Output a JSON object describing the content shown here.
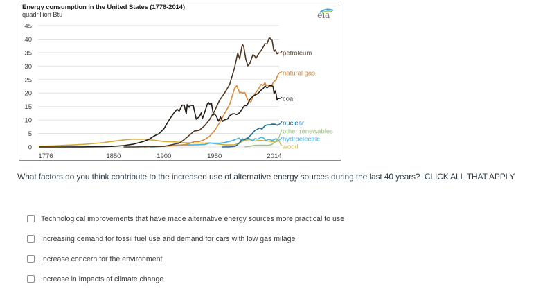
{
  "chart_data": {
    "type": "line",
    "title": "Energy consumption in the United States (1776-2014)",
    "subtitle": "quadrillion Btu",
    "xlabel": "",
    "ylabel": "quadrillion Btu",
    "xlim": [
      1776,
      2014
    ],
    "ylim": [
      0,
      45
    ],
    "xticks": [
      1776,
      1850,
      1900,
      1950,
      2014
    ],
    "yticks": [
      0,
      5,
      10,
      15,
      20,
      25,
      30,
      35,
      40,
      45
    ],
    "grid": true,
    "legend": "inline-right",
    "logo": "eia",
    "series": [
      {
        "name": "petroleum",
        "color": "#4e3620",
        "label_color": "#5c4a3a",
        "points": [
          [
            1860,
            0.0
          ],
          [
            1870,
            0.01
          ],
          [
            1880,
            0.1
          ],
          [
            1890,
            0.16
          ],
          [
            1900,
            0.23
          ],
          [
            1905,
            0.6
          ],
          [
            1910,
            1.0
          ],
          [
            1915,
            1.4
          ],
          [
            1920,
            2.7
          ],
          [
            1925,
            4.3
          ],
          [
            1930,
            5.9
          ],
          [
            1935,
            6.2
          ],
          [
            1940,
            7.8
          ],
          [
            1945,
            10.1
          ],
          [
            1950,
            13.3
          ],
          [
            1955,
            17.3
          ],
          [
            1960,
            20.0
          ],
          [
            1965,
            23.2
          ],
          [
            1970,
            29.5
          ],
          [
            1973,
            34.8
          ],
          [
            1975,
            32.7
          ],
          [
            1977,
            37.1
          ],
          [
            1978,
            37.9
          ],
          [
            1979,
            37.1
          ],
          [
            1981,
            32.6
          ],
          [
            1983,
            30.1
          ],
          [
            1985,
            30.9
          ],
          [
            1988,
            34.2
          ],
          [
            1990,
            33.6
          ],
          [
            1991,
            32.8
          ],
          [
            1994,
            34.7
          ],
          [
            1996,
            35.7
          ],
          [
            1998,
            36.9
          ],
          [
            2000,
            38.3
          ],
          [
            2002,
            38.2
          ],
          [
            2004,
            40.3
          ],
          [
            2005,
            40.4
          ],
          [
            2006,
            39.9
          ],
          [
            2007,
            39.8
          ],
          [
            2008,
            37.3
          ],
          [
            2009,
            35.4
          ],
          [
            2010,
            36.0
          ],
          [
            2011,
            35.3
          ],
          [
            2012,
            34.5
          ],
          [
            2013,
            35.0
          ],
          [
            2014,
            34.8
          ]
        ]
      },
      {
        "name": "natural gas",
        "color": "#d68a3c",
        "label_color": "#d68a3c",
        "points": [
          [
            1880,
            0.0
          ],
          [
            1890,
            0.25
          ],
          [
            1900,
            0.25
          ],
          [
            1905,
            0.37
          ],
          [
            1910,
            0.54
          ],
          [
            1915,
            0.67
          ],
          [
            1920,
            0.82
          ],
          [
            1925,
            1.2
          ],
          [
            1930,
            1.97
          ],
          [
            1935,
            1.97
          ],
          [
            1940,
            2.7
          ],
          [
            1945,
            3.9
          ],
          [
            1950,
            6.0
          ],
          [
            1955,
            9.0
          ],
          [
            1960,
            12.4
          ],
          [
            1965,
            15.8
          ],
          [
            1970,
            21.8
          ],
          [
            1972,
            22.7
          ],
          [
            1975,
            20.0
          ],
          [
            1976,
            20.3
          ],
          [
            1978,
            20.0
          ],
          [
            1980,
            20.2
          ],
          [
            1983,
            17.4
          ],
          [
            1986,
            16.6
          ],
          [
            1988,
            18.5
          ],
          [
            1990,
            19.6
          ],
          [
            1993,
            21.2
          ],
          [
            1996,
            23.1
          ],
          [
            1997,
            23.2
          ],
          [
            1998,
            22.8
          ],
          [
            2000,
            23.8
          ],
          [
            2001,
            22.8
          ],
          [
            2003,
            22.9
          ],
          [
            2005,
            22.6
          ],
          [
            2006,
            22.2
          ],
          [
            2008,
            23.8
          ],
          [
            2010,
            24.6
          ],
          [
            2011,
            24.9
          ],
          [
            2012,
            26.1
          ],
          [
            2013,
            26.8
          ],
          [
            2014,
            27.5
          ]
        ]
      },
      {
        "name": "coal",
        "color": "#221c14",
        "label_color": "#333333",
        "points": [
          [
            1776,
            0.0
          ],
          [
            1800,
            0.01
          ],
          [
            1820,
            0.02
          ],
          [
            1840,
            0.1
          ],
          [
            1850,
            0.22
          ],
          [
            1860,
            0.52
          ],
          [
            1870,
            1.05
          ],
          [
            1880,
            2.05
          ],
          [
            1885,
            2.8
          ],
          [
            1890,
            4.0
          ],
          [
            1895,
            4.9
          ],
          [
            1900,
            6.8
          ],
          [
            1905,
            10.0
          ],
          [
            1910,
            12.7
          ],
          [
            1913,
            14.0
          ],
          [
            1915,
            13.3
          ],
          [
            1918,
            15.5
          ],
          [
            1920,
            15.5
          ],
          [
            1922,
            12.3
          ],
          [
            1923,
            15.7
          ],
          [
            1925,
            14.7
          ],
          [
            1926,
            15.5
          ],
          [
            1929,
            15.3
          ],
          [
            1930,
            13.6
          ],
          [
            1932,
            10.3
          ],
          [
            1935,
            11.2
          ],
          [
            1937,
            12.7
          ],
          [
            1938,
            10.5
          ],
          [
            1940,
            12.5
          ],
          [
            1943,
            16.0
          ],
          [
            1944,
            16.5
          ],
          [
            1945,
            15.9
          ],
          [
            1947,
            16.1
          ],
          [
            1949,
            11.9
          ],
          [
            1950,
            12.3
          ],
          [
            1952,
            11.3
          ],
          [
            1954,
            9.6
          ],
          [
            1956,
            11.1
          ],
          [
            1958,
            9.5
          ],
          [
            1960,
            10.1
          ],
          [
            1963,
            10.4
          ],
          [
            1965,
            11.6
          ],
          [
            1968,
            12.3
          ],
          [
            1970,
            12.3
          ],
          [
            1972,
            12.0
          ],
          [
            1975,
            12.7
          ],
          [
            1977,
            13.9
          ],
          [
            1979,
            15.0
          ],
          [
            1980,
            15.4
          ],
          [
            1982,
            15.3
          ],
          [
            1985,
            17.5
          ],
          [
            1988,
            18.8
          ],
          [
            1990,
            19.2
          ],
          [
            1993,
            19.8
          ],
          [
            1996,
            21.0
          ],
          [
            1998,
            21.6
          ],
          [
            2000,
            22.6
          ],
          [
            2002,
            21.9
          ],
          [
            2004,
            22.5
          ],
          [
            2005,
            22.8
          ],
          [
            2007,
            22.7
          ],
          [
            2008,
            22.4
          ],
          [
            2009,
            19.7
          ],
          [
            2010,
            20.8
          ],
          [
            2011,
            19.7
          ],
          [
            2012,
            17.4
          ],
          [
            2013,
            18.0
          ],
          [
            2014,
            17.9
          ]
        ]
      },
      {
        "name": "nuclear",
        "color": "#1b6e98",
        "label_color": "#1b6e98",
        "points": [
          [
            1957,
            0.0
          ],
          [
            1965,
            0.04
          ],
          [
            1968,
            0.14
          ],
          [
            1970,
            0.24
          ],
          [
            1972,
            0.58
          ],
          [
            1974,
            1.27
          ],
          [
            1976,
            2.11
          ],
          [
            1978,
            3.02
          ],
          [
            1979,
            2.78
          ],
          [
            1980,
            2.74
          ],
          [
            1983,
            3.2
          ],
          [
            1985,
            4.08
          ],
          [
            1987,
            4.75
          ],
          [
            1990,
            6.1
          ],
          [
            1992,
            6.48
          ],
          [
            1995,
            7.08
          ],
          [
            1997,
            6.6
          ],
          [
            1998,
            7.07
          ],
          [
            2000,
            7.86
          ],
          [
            2002,
            8.14
          ],
          [
            2004,
            8.22
          ],
          [
            2005,
            8.16
          ],
          [
            2007,
            8.46
          ],
          [
            2010,
            8.43
          ],
          [
            2012,
            8.06
          ],
          [
            2013,
            8.27
          ],
          [
            2014,
            8.33
          ]
        ]
      },
      {
        "name": "other renewables",
        "color": "#9cc47c",
        "label_color": "#9cc47c",
        "points": [
          [
            1980,
            0.05
          ],
          [
            1985,
            0.25
          ],
          [
            1990,
            0.6
          ],
          [
            1995,
            0.65
          ],
          [
            2000,
            0.62
          ],
          [
            2003,
            0.6
          ],
          [
            2005,
            0.75
          ],
          [
            2007,
            0.95
          ],
          [
            2008,
            1.3
          ],
          [
            2010,
            1.9
          ],
          [
            2011,
            2.3
          ],
          [
            2012,
            2.6
          ],
          [
            2013,
            3.2
          ],
          [
            2014,
            3.7
          ]
        ]
      },
      {
        "name": "hydroelectric",
        "color": "#3fb2e2",
        "label_color": "#3fa8dc",
        "points": [
          [
            1886,
            0.0
          ],
          [
            1890,
            0.02
          ],
          [
            1900,
            0.25
          ],
          [
            1910,
            0.54
          ],
          [
            1920,
            0.77
          ],
          [
            1930,
            0.75
          ],
          [
            1940,
            0.88
          ],
          [
            1945,
            1.4
          ],
          [
            1950,
            1.42
          ],
          [
            1955,
            1.36
          ],
          [
            1960,
            1.61
          ],
          [
            1965,
            2.06
          ],
          [
            1970,
            2.63
          ],
          [
            1974,
            3.3
          ],
          [
            1977,
            2.3
          ],
          [
            1980,
            2.9
          ],
          [
            1983,
            3.5
          ],
          [
            1985,
            2.97
          ],
          [
            1988,
            2.33
          ],
          [
            1990,
            3.05
          ],
          [
            1993,
            2.89
          ],
          [
            1996,
            3.59
          ],
          [
            1997,
            3.64
          ],
          [
            1999,
            3.27
          ],
          [
            2001,
            2.24
          ],
          [
            2003,
            2.83
          ],
          [
            2005,
            2.7
          ],
          [
            2007,
            2.45
          ],
          [
            2009,
            2.67
          ],
          [
            2011,
            3.1
          ],
          [
            2012,
            2.63
          ],
          [
            2014,
            2.47
          ]
        ]
      },
      {
        "name": "wood",
        "color": "#d4ab3a",
        "label_color": "#dcbc5e",
        "points": [
          [
            1776,
            0.25
          ],
          [
            1790,
            0.4
          ],
          [
            1800,
            0.6
          ],
          [
            1810,
            0.75
          ],
          [
            1820,
            0.95
          ],
          [
            1830,
            1.25
          ],
          [
            1840,
            1.6
          ],
          [
            1850,
            2.1
          ],
          [
            1860,
            2.6
          ],
          [
            1870,
            2.9
          ],
          [
            1880,
            2.85
          ],
          [
            1890,
            2.5
          ],
          [
            1900,
            2.0
          ],
          [
            1910,
            1.9
          ],
          [
            1920,
            1.6
          ],
          [
            1930,
            1.45
          ],
          [
            1940,
            1.4
          ],
          [
            1945,
            1.5
          ],
          [
            1950,
            1.2
          ],
          [
            1955,
            1.0
          ],
          [
            1960,
            0.8
          ],
          [
            1965,
            0.75
          ],
          [
            1970,
            0.8
          ],
          [
            1975,
            1.5
          ],
          [
            1980,
            2.5
          ],
          [
            1985,
            2.7
          ],
          [
            1990,
            2.2
          ],
          [
            1995,
            2.4
          ],
          [
            2000,
            2.3
          ],
          [
            2005,
            2.1
          ],
          [
            2010,
            1.9
          ],
          [
            2014,
            2.2
          ]
        ]
      }
    ]
  },
  "question": {
    "text": "What factors do you think contribute to the increased use of alternative energy sources during the last 40 years?  CLICK ALL THAT APPLY",
    "options": [
      {
        "label": "Technological improvements that have made alternative energy sources more practical to use",
        "checked": false
      },
      {
        "label": "Increasing demand for fossil fuel use and demand for cars with low gas milage",
        "checked": false
      },
      {
        "label": "Increase concern for the environment",
        "checked": false
      },
      {
        "label": "Increase in impacts of climate change",
        "checked": false
      }
    ]
  }
}
